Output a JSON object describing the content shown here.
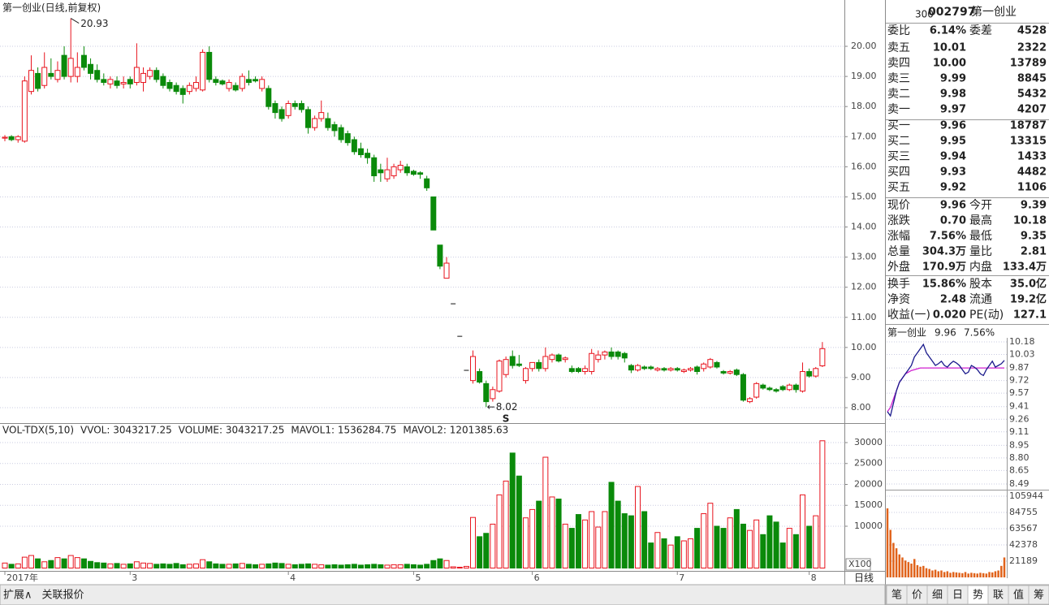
{
  "header": {
    "title": "第一创业(日线,前复权)"
  },
  "price_chart": {
    "type": "candlestick",
    "ylim": [
      7.515,
      21.484
    ],
    "yticks": [
      {
        "value": 8,
        "label": "8.00"
      },
      {
        "value": 9,
        "label": "9.00"
      },
      {
        "value": 10,
        "label": "10.00"
      },
      {
        "value": 11,
        "label": "11.00"
      },
      {
        "value": 12,
        "label": "12.00"
      },
      {
        "value": 13,
        "label": "13.00"
      },
      {
        "value": 14,
        "label": "14.00"
      },
      {
        "value": 15,
        "label": "15.00"
      },
      {
        "value": 16,
        "label": "16.00"
      },
      {
        "value": 17,
        "label": "17.00"
      },
      {
        "value": 18,
        "label": "18.00"
      },
      {
        "value": 19,
        "label": "19.00"
      },
      {
        "value": 20,
        "label": "20.00"
      }
    ],
    "grid": true,
    "up_color": "#e8141e",
    "down_color": "#0a8a0a",
    "high_label": 20.93,
    "low_label": 8.02,
    "signal_label": "S",
    "categories": [
      "2017年",
      null,
      null,
      null,
      null,
      null,
      null,
      null,
      null,
      null,
      null,
      null,
      null,
      null,
      null,
      null,
      null,
      null,
      null,
      "3",
      null,
      null,
      null,
      null,
      null,
      null,
      null,
      null,
      null,
      null,
      null,
      null,
      null,
      null,
      null,
      null,
      null,
      null,
      null,
      null,
      null,
      null,
      null,
      "4",
      null,
      null,
      null,
      null,
      null,
      null,
      null,
      null,
      null,
      null,
      null,
      null,
      null,
      null,
      null,
      null,
      null,
      null,
      "5",
      null,
      null,
      null,
      null,
      null,
      null,
      null,
      null,
      null,
      null,
      null,
      null,
      null,
      null,
      null,
      null,
      null,
      "6",
      null,
      null,
      null,
      null,
      null,
      null,
      null,
      null,
      null,
      null,
      null,
      null,
      null,
      null,
      null,
      null,
      null,
      null,
      null,
      null,
      null,
      "7",
      null,
      null,
      null,
      null,
      null,
      null,
      null,
      null,
      null,
      null,
      null,
      null,
      null,
      null,
      null,
      null,
      null,
      null,
      null,
      "8"
    ],
    "candles": [
      [
        16.95,
        17.05,
        16.85,
        16.98
      ],
      [
        17.0,
        17.05,
        16.85,
        16.9
      ],
      [
        16.9,
        17.05,
        16.8,
        17.0
      ],
      [
        16.85,
        19.0,
        16.8,
        18.85
      ],
      [
        18.5,
        19.7,
        18.4,
        19.2
      ],
      [
        19.1,
        19.3,
        18.5,
        18.6
      ],
      [
        18.7,
        19.8,
        18.6,
        19.3
      ],
      [
        19.1,
        19.6,
        18.9,
        19.0
      ],
      [
        18.9,
        19.5,
        18.8,
        19.2
      ],
      [
        19.7,
        20.0,
        18.9,
        19.0
      ],
      [
        19.0,
        20.93,
        18.8,
        19.6
      ],
      [
        19.0,
        19.8,
        18.8,
        19.3
      ],
      [
        19.7,
        20.0,
        19.2,
        19.3
      ],
      [
        19.4,
        19.6,
        18.9,
        19.1
      ],
      [
        19.2,
        19.4,
        18.8,
        18.9
      ],
      [
        18.9,
        19.1,
        18.7,
        18.8
      ],
      [
        18.75,
        19.0,
        18.6,
        18.9
      ],
      [
        18.85,
        19.0,
        18.6,
        18.7
      ],
      [
        18.75,
        19.0,
        18.6,
        18.8
      ],
      [
        18.9,
        19.0,
        18.6,
        18.75
      ],
      [
        18.8,
        20.1,
        18.7,
        19.3
      ],
      [
        18.8,
        19.3,
        18.5,
        19.1
      ],
      [
        19.0,
        19.3,
        18.9,
        19.2
      ],
      [
        19.2,
        19.3,
        18.8,
        18.9
      ],
      [
        19.0,
        19.1,
        18.6,
        18.7
      ],
      [
        18.8,
        18.9,
        18.5,
        18.6
      ],
      [
        18.7,
        18.8,
        18.4,
        18.5
      ],
      [
        18.6,
        18.7,
        18.1,
        18.4
      ],
      [
        18.5,
        18.8,
        18.4,
        18.7
      ],
      [
        18.6,
        19.0,
        18.5,
        18.8
      ],
      [
        18.55,
        19.9,
        18.5,
        19.8
      ],
      [
        19.8,
        20.0,
        18.8,
        18.9
      ],
      [
        18.9,
        19.0,
        18.7,
        18.8
      ],
      [
        18.85,
        18.9,
        18.7,
        18.75
      ],
      [
        18.6,
        18.9,
        18.5,
        18.8
      ],
      [
        18.7,
        18.8,
        18.5,
        18.55
      ],
      [
        18.6,
        19.1,
        18.5,
        19.0
      ],
      [
        18.9,
        19.2,
        18.7,
        18.8
      ],
      [
        18.9,
        19.0,
        18.8,
        18.85
      ],
      [
        18.6,
        19.0,
        18.5,
        18.9
      ],
      [
        18.6,
        18.7,
        17.9,
        18.0
      ],
      [
        18.1,
        18.2,
        17.6,
        17.8
      ],
      [
        17.9,
        18.0,
        17.5,
        17.6
      ],
      [
        17.7,
        18.2,
        17.6,
        18.1
      ],
      [
        18.1,
        18.2,
        17.9,
        18.0
      ],
      [
        18.1,
        18.2,
        17.8,
        17.9
      ],
      [
        17.9,
        18.0,
        17.1,
        17.3
      ],
      [
        17.3,
        17.7,
        17.2,
        17.6
      ],
      [
        17.6,
        18.2,
        17.5,
        17.8
      ],
      [
        17.6,
        17.8,
        17.2,
        17.3
      ],
      [
        17.4,
        17.5,
        17.0,
        17.2
      ],
      [
        17.3,
        17.4,
        16.8,
        16.9
      ],
      [
        17.1,
        17.2,
        16.7,
        16.8
      ],
      [
        16.9,
        17.0,
        16.4,
        16.5
      ],
      [
        16.6,
        16.8,
        16.3,
        16.4
      ],
      [
        16.45,
        16.6,
        16.1,
        16.3
      ],
      [
        16.3,
        16.4,
        15.5,
        15.7
      ],
      [
        15.9,
        16.1,
        15.5,
        15.8
      ],
      [
        15.6,
        16.3,
        15.5,
        15.9
      ],
      [
        15.7,
        16.1,
        15.6,
        16.0
      ],
      [
        15.9,
        16.2,
        15.8,
        16.05
      ],
      [
        16.0,
        16.1,
        15.7,
        15.8
      ],
      [
        15.85,
        15.9,
        15.7,
        15.75
      ],
      [
        15.8,
        15.85,
        15.6,
        15.75
      ],
      [
        15.6,
        15.7,
        15.2,
        15.3
      ],
      [
        15.0,
        15.0,
        13.9,
        13.9
      ],
      [
        13.4,
        13.4,
        12.6,
        12.7
      ],
      [
        12.3,
        13.0,
        12.3,
        12.8
      ],
      [
        11.45,
        11.45,
        11.45,
        11.45
      ],
      [
        10.37,
        10.37,
        10.37,
        10.37
      ],
      [
        9.24,
        9.24,
        9.24,
        9.24
      ],
      [
        8.9,
        9.9,
        8.8,
        9.7
      ],
      [
        9.2,
        9.3,
        8.8,
        8.85
      ],
      [
        8.8,
        8.9,
        8.02,
        8.2
      ],
      [
        8.3,
        8.7,
        8.2,
        8.6
      ],
      [
        8.55,
        9.6,
        8.5,
        9.55
      ],
      [
        9.1,
        9.7,
        9.0,
        9.6
      ],
      [
        9.7,
        9.9,
        9.3,
        9.4
      ],
      [
        9.45,
        9.75,
        9.35,
        9.4
      ],
      [
        8.9,
        9.35,
        8.8,
        9.3
      ],
      [
        9.3,
        9.5,
        9.2,
        9.5
      ],
      [
        9.5,
        9.6,
        9.2,
        9.3
      ],
      [
        9.3,
        10.0,
        9.2,
        9.7
      ],
      [
        9.6,
        9.8,
        9.5,
        9.75
      ],
      [
        9.75,
        9.8,
        9.5,
        9.55
      ],
      [
        9.6,
        9.7,
        9.5,
        9.65
      ],
      [
        9.3,
        9.4,
        9.15,
        9.2
      ],
      [
        9.3,
        9.35,
        9.15,
        9.2
      ],
      [
        9.2,
        9.4,
        9.1,
        9.3
      ],
      [
        9.2,
        9.95,
        9.1,
        9.8
      ],
      [
        9.6,
        9.9,
        9.5,
        9.75
      ],
      [
        9.75,
        9.9,
        9.6,
        9.85
      ],
      [
        9.85,
        10.0,
        9.6,
        9.7
      ],
      [
        9.85,
        9.9,
        9.6,
        9.7
      ],
      [
        9.8,
        9.85,
        9.5,
        9.65
      ],
      [
        9.4,
        9.45,
        9.15,
        9.25
      ],
      [
        9.25,
        9.45,
        9.2,
        9.4
      ],
      [
        9.35,
        9.4,
        9.25,
        9.3
      ],
      [
        9.35,
        9.4,
        9.25,
        9.3
      ],
      [
        9.25,
        9.35,
        9.2,
        9.3
      ],
      [
        9.3,
        9.35,
        9.2,
        9.25
      ],
      [
        9.25,
        9.35,
        9.2,
        9.3
      ],
      [
        9.3,
        9.35,
        9.2,
        9.25
      ],
      [
        9.2,
        9.3,
        9.15,
        9.25
      ],
      [
        9.25,
        9.35,
        9.2,
        9.3
      ],
      [
        9.35,
        9.4,
        9.1,
        9.2
      ],
      [
        9.3,
        9.5,
        9.2,
        9.45
      ],
      [
        9.35,
        9.65,
        9.3,
        9.6
      ],
      [
        9.5,
        9.55,
        9.3,
        9.35
      ],
      [
        9.2,
        9.25,
        9.1,
        9.15
      ],
      [
        9.15,
        9.25,
        9.1,
        9.2
      ],
      [
        9.25,
        9.3,
        9.05,
        9.1
      ],
      [
        9.1,
        9.15,
        8.2,
        8.25
      ],
      [
        8.2,
        8.35,
        8.15,
        8.3
      ],
      [
        8.35,
        8.85,
        8.3,
        8.8
      ],
      [
        8.75,
        8.8,
        8.6,
        8.65
      ],
      [
        8.65,
        8.7,
        8.55,
        8.6
      ],
      [
        8.6,
        8.65,
        8.5,
        8.55
      ],
      [
        8.7,
        8.75,
        8.55,
        8.6
      ],
      [
        8.6,
        8.8,
        8.55,
        8.75
      ],
      [
        8.75,
        8.8,
        8.5,
        8.6
      ],
      [
        8.55,
        9.5,
        8.5,
        9.2
      ],
      [
        9.2,
        9.3,
        9.0,
        9.05
      ],
      [
        9.05,
        9.35,
        9.0,
        9.3
      ],
      [
        9.39,
        10.18,
        9.35,
        9.96
      ]
    ]
  },
  "volume_chart": {
    "type": "bar",
    "legend": [
      "VOL-TDX(5,10)",
      "VVOL: 3043217.25",
      "VOLUME: 3043217.25",
      "MAVOL1: 1536284.75",
      "MAVOL2: 1201385.63"
    ],
    "unit_label": "X100",
    "ylim": [
      0,
      34466
    ],
    "yticks": [
      10000,
      15000,
      20000,
      25000,
      30000
    ],
    "grid": true,
    "values": [
      1200,
      900,
      1000,
      2600,
      3000,
      2200,
      1500,
      1800,
      2500,
      2200,
      3000,
      2500,
      2200,
      1600,
      1300,
      1200,
      1000,
      1100,
      900,
      1000,
      1500,
      1200,
      1100,
      900,
      1000,
      900,
      1100,
      800,
      900,
      1000,
      2000,
      1500,
      1000,
      900,
      900,
      1000,
      1100,
      900,
      800,
      900,
      1000,
      1200,
      1100,
      900,
      800,
      900,
      1000,
      900,
      800,
      700,
      800,
      700,
      800,
      900,
      700,
      800,
      900,
      800,
      700,
      800,
      800,
      900,
      800,
      700,
      900,
      1800,
      2200,
      1800,
      300,
      200,
      400,
      12100,
      7500,
      8300,
      10500,
      17500,
      20800,
      27500,
      22000,
      12000,
      14000,
      16000,
      26500,
      17000,
      16500,
      10500,
      9500,
      12800,
      11500,
      13500,
      9800,
      13500,
      20500,
      16000,
      13000,
      12500,
      19500,
      13500,
      6000,
      8500,
      7000,
      5500,
      7500,
      6500,
      7000,
      9500,
      13000,
      15500,
      10000,
      9500,
      12000,
      14000,
      10500,
      9000,
      11500,
      8000,
      12500,
      11000,
      6000,
      9500,
      8000,
      17500,
      10000,
      12500,
      30432
    ]
  },
  "period_label": "日线",
  "footer": {
    "left_tabs": [
      "扩展∧",
      "关联报价"
    ],
    "right_tabs": [
      "笔",
      "价",
      "细",
      "日",
      "势",
      "联",
      "值",
      "筹"
    ]
  },
  "quote": {
    "market": "300",
    "code": "002797",
    "name": "第一创业",
    "ratio_row": [
      "委比",
      "6.14%",
      "委差",
      "4528"
    ],
    "asks": [
      [
        "卖五",
        "10.01",
        "2322"
      ],
      [
        "卖四",
        "10.00",
        "13789"
      ],
      [
        "卖三",
        "9.99",
        "8845"
      ],
      [
        "卖二",
        "9.98",
        "5432"
      ],
      [
        "卖一",
        "9.97",
        "4207"
      ]
    ],
    "bids": [
      [
        "买一",
        "9.96",
        "18787"
      ],
      [
        "买二",
        "9.95",
        "13315"
      ],
      [
        "买三",
        "9.94",
        "1433"
      ],
      [
        "买四",
        "9.93",
        "4482"
      ],
      [
        "买五",
        "9.92",
        "1106"
      ]
    ],
    "stats": [
      [
        "现价",
        "9.96",
        "今开",
        "9.39"
      ],
      [
        "涨跌",
        "0.70",
        "最高",
        "10.18"
      ],
      [
        "涨幅",
        "7.56%",
        "最低",
        "9.35"
      ],
      [
        "总量",
        "304.3万",
        "量比",
        "2.81"
      ],
      [
        "外盘",
        "170.9万",
        "内盘",
        "133.4万"
      ]
    ],
    "stats2": [
      [
        "换手",
        "15.86%",
        "股本",
        "35.0亿"
      ],
      [
        "净资",
        "2.48",
        "流通",
        "19.2亿"
      ],
      [
        "收益(一)",
        "0.020",
        "PE(动)",
        "127.1"
      ]
    ]
  },
  "intraday": {
    "type": "line",
    "name": "第一创业",
    "price": "9.96",
    "change": "7.56%",
    "ylim": [
      8.49,
      10.18
    ],
    "yticks": [
      10.18,
      10.03,
      9.87,
      9.72,
      9.57,
      9.41,
      9.26,
      9.11,
      8.95,
      {
        "value": 8.8,
        "label": "8.80"
      },
      8.65,
      8.49
    ],
    "prices": [
      9.35,
      9.3,
      9.45,
      9.6,
      9.7,
      9.75,
      9.8,
      9.85,
      9.9,
      10.0,
      10.05,
      10.1,
      10.15,
      10.05,
      10.0,
      9.95,
      9.9,
      9.92,
      9.95,
      9.9,
      9.88,
      9.92,
      9.95,
      9.93,
      9.9,
      9.85,
      9.8,
      9.82,
      9.9,
      9.88,
      9.85,
      9.8,
      9.78,
      9.85,
      9.9,
      9.95,
      9.88,
      9.9,
      9.92,
      9.96
    ],
    "avg": [
      9.35,
      9.4,
      9.5,
      9.6,
      9.7,
      9.75,
      9.8,
      9.82,
      9.84,
      9.85,
      9.86,
      9.87,
      9.87,
      9.87,
      9.87,
      9.87,
      9.87,
      9.87,
      9.87,
      9.87,
      9.87,
      9.87,
      9.87,
      9.87,
      9.87,
      9.87,
      9.87,
      9.87,
      9.87,
      9.87,
      9.87,
      9.87,
      9.87,
      9.87,
      9.87,
      9.87,
      9.87,
      9.87,
      9.87,
      9.87
    ],
    "line_color": "#1a1a8c",
    "avg_color": "#d020d0",
    "volume_color": "#e0621a",
    "vlim": [
      0,
      105944
    ],
    "vticks": [
      105944,
      84755,
      63567,
      42378,
      21189
    ],
    "volumes": [
      90000,
      62000,
      45000,
      38000,
      30000,
      26000,
      22000,
      20000,
      18000,
      24000,
      16000,
      14000,
      15000,
      12000,
      11000,
      9000,
      10000,
      8000,
      9000,
      7000,
      8000,
      6000,
      7000,
      6500,
      6000,
      5500,
      7000,
      5000,
      6000,
      5500,
      5000,
      6000,
      5500,
      5000,
      7000,
      6500,
      8000,
      9000,
      15000,
      26000
    ]
  }
}
